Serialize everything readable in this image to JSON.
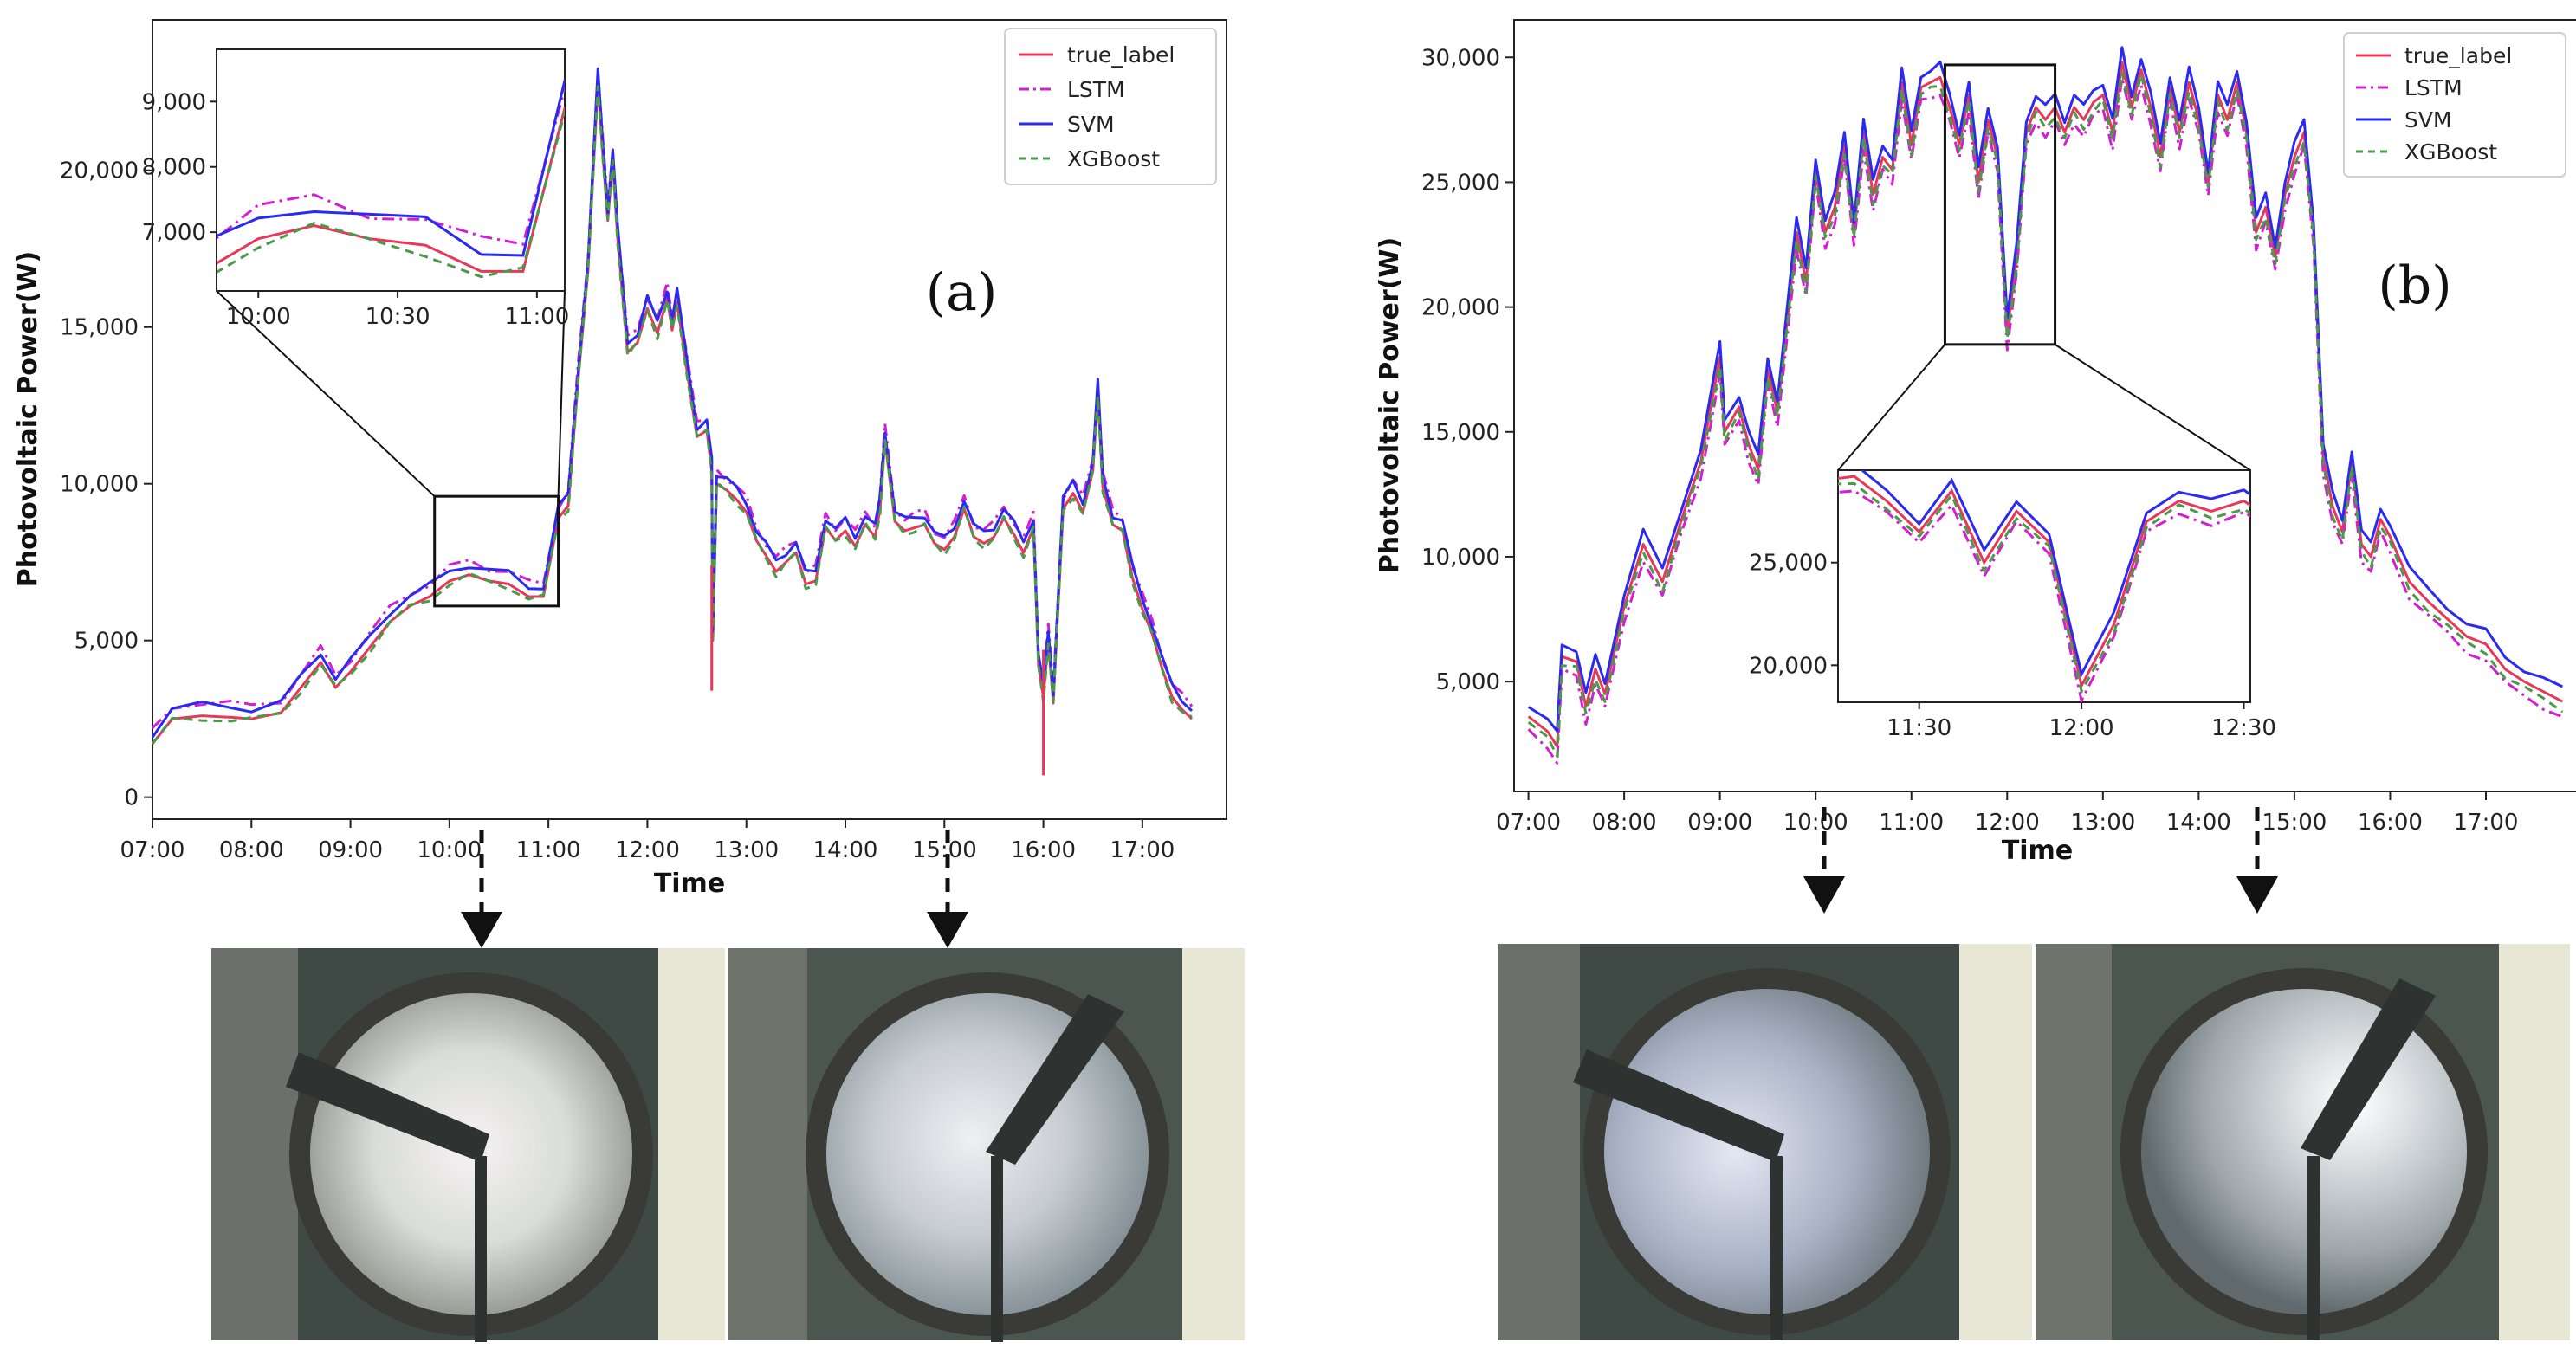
{
  "colors": {
    "true_label": "#e8385a",
    "LSTM": "#d21fd2",
    "SVM": "#2a2af0",
    "XGBoost": "#4a9a4a"
  },
  "chart_data": [
    {
      "id": "a",
      "type": "line",
      "panel_label": "(a)",
      "xlabel": "Time",
      "ylabel": "Photovoltaic Power(W)",
      "xlim": [
        7.0,
        17.85
      ],
      "ylim": [
        -700,
        24800
      ],
      "xticks": [
        "07:00",
        "08:00",
        "09:00",
        "10:00",
        "11:00",
        "12:00",
        "13:00",
        "14:00",
        "15:00",
        "16:00",
        "17:00"
      ],
      "yticks": [
        "0",
        "5,000",
        "10,000",
        "15,000",
        "20,000"
      ],
      "legend": [
        "true_label",
        "LSTM",
        "SVM",
        "XGBoost"
      ],
      "legend_position": "top-right",
      "series_base": {
        "x": [
          7.0,
          7.2,
          7.5,
          7.8,
          8.0,
          8.3,
          8.5,
          8.7,
          8.85,
          9.0,
          9.2,
          9.4,
          9.6,
          9.8,
          10.0,
          10.2,
          10.4,
          10.6,
          10.8,
          10.95,
          11.1,
          11.2,
          11.3,
          11.4,
          11.5,
          11.55,
          11.6,
          11.65,
          11.7,
          11.8,
          11.9,
          12.0,
          12.1,
          12.2,
          12.25,
          12.3,
          12.4,
          12.5,
          12.6,
          12.65,
          12.66,
          12.7,
          12.8,
          12.9,
          13.0,
          13.1,
          13.2,
          13.3,
          13.4,
          13.5,
          13.6,
          13.7,
          13.8,
          13.9,
          14.0,
          14.1,
          14.2,
          14.3,
          14.35,
          14.4,
          14.5,
          14.6,
          14.7,
          14.8,
          14.9,
          15.0,
          15.1,
          15.2,
          15.3,
          15.4,
          15.5,
          15.6,
          15.7,
          15.8,
          15.9,
          15.95,
          16.0,
          16.05,
          16.1,
          16.2,
          16.3,
          16.4,
          16.5,
          16.55,
          16.6,
          16.7,
          16.8,
          16.9,
          17.0,
          17.1,
          17.2,
          17.3,
          17.4,
          17.5
        ],
        "values": [
          1700,
          2500,
          2600,
          2550,
          2500,
          2700,
          3500,
          4300,
          3500,
          4000,
          4800,
          5600,
          6100,
          6400,
          6900,
          7100,
          6900,
          6800,
          6400,
          6400,
          8900,
          9300,
          13300,
          16800,
          22800,
          20500,
          18400,
          20300,
          17800,
          14200,
          14500,
          15600,
          14800,
          15900,
          14900,
          15800,
          13600,
          11500,
          11700,
          10400,
          5000,
          10000,
          9800,
          9500,
          9100,
          8200,
          7700,
          7200,
          7500,
          7800,
          6800,
          6900,
          8600,
          8200,
          8500,
          8000,
          8700,
          8300,
          9200,
          11400,
          8800,
          8500,
          8600,
          8700,
          8100,
          7900,
          8300,
          9200,
          8300,
          8100,
          8300,
          8900,
          8400,
          7800,
          8600,
          4200,
          3200,
          5000,
          3000,
          9200,
          9700,
          9100,
          10400,
          12900,
          9900,
          8700,
          8500,
          7000,
          6000,
          5200,
          4100,
          3200,
          2800,
          2500
        ]
      },
      "series": [
        {
          "name": "true_label",
          "style": "solid",
          "offset": 0
        },
        {
          "name": "LSTM",
          "style": "dashdot",
          "offset": 420
        },
        {
          "name": "SVM",
          "style": "solid",
          "offset": 330
        },
        {
          "name": "XGBoost",
          "style": "dashed",
          "offset": -60
        }
      ],
      "annotations": [
        {
          "x": 16.0,
          "y": 700,
          "series": "true_label"
        },
        {
          "x": 12.65,
          "y": 3400,
          "series": "true_label"
        }
      ],
      "zoom_box": {
        "x": [
          9.85,
          11.1
        ],
        "y": [
          6100,
          9600
        ]
      },
      "inset": {
        "xlim": [
          9.85,
          11.1
        ],
        "ylim": [
          6100,
          9800
        ],
        "xticks": [
          "10:00",
          "10:30",
          "11:00"
        ],
        "yticks": [
          "7,000",
          "8,000",
          "9,000"
        ],
        "tick_values_x": [
          10.0,
          10.5,
          11.0
        ],
        "tick_values_y": [
          7000,
          8000,
          9000
        ]
      },
      "photos": [
        "10:00 sky image",
        "15:00 sky image"
      ]
    },
    {
      "id": "b",
      "type": "line",
      "panel_label": "(b)",
      "xlabel": "Time",
      "ylabel": "Photovoltaic Power(W)",
      "xlim": [
        6.85,
        17.95
      ],
      "ylim": [
        600,
        31500
      ],
      "xticks": [
        "07:00",
        "08:00",
        "09:00",
        "10:00",
        "11:00",
        "12:00",
        "13:00",
        "14:00",
        "15:00",
        "16:00",
        "17:00"
      ],
      "yticks": [
        "5,000",
        "10,000",
        "15,000",
        "20,000",
        "25,000",
        "30,000"
      ],
      "legend": [
        "true_label",
        "LSTM",
        "SVM",
        "XGBoost"
      ],
      "legend_position": "top-right",
      "series_base": {
        "x": [
          7.0,
          7.2,
          7.3,
          7.35,
          7.5,
          7.6,
          7.7,
          7.8,
          8.0,
          8.2,
          8.4,
          8.6,
          8.8,
          9.0,
          9.05,
          9.2,
          9.3,
          9.4,
          9.5,
          9.6,
          9.8,
          9.9,
          10.0,
          10.1,
          10.2,
          10.3,
          10.4,
          10.5,
          10.6,
          10.7,
          10.8,
          10.9,
          11.0,
          11.1,
          11.2,
          11.3,
          11.4,
          11.5,
          11.6,
          11.7,
          11.8,
          11.9,
          12.0,
          12.1,
          12.2,
          12.3,
          12.4,
          12.5,
          12.6,
          12.7,
          12.8,
          12.9,
          13.0,
          13.1,
          13.2,
          13.3,
          13.4,
          13.5,
          13.6,
          13.7,
          13.8,
          13.9,
          14.0,
          14.1,
          14.2,
          14.3,
          14.4,
          14.5,
          14.6,
          14.7,
          14.8,
          14.9,
          15.0,
          15.1,
          15.2,
          15.3,
          15.4,
          15.5,
          15.6,
          15.7,
          15.8,
          15.9,
          16.0,
          16.2,
          16.4,
          16.6,
          16.8,
          17.0,
          17.2,
          17.4,
          17.6,
          17.8
        ],
        "values": [
          3600,
          3000,
          2400,
          6000,
          5800,
          4000,
          5500,
          4500,
          8000,
          10500,
          9000,
          11500,
          13800,
          18000,
          15000,
          16000,
          14500,
          13500,
          17500,
          15800,
          23000,
          21000,
          25500,
          23000,
          24000,
          26500,
          23000,
          27000,
          24500,
          26000,
          25500,
          29000,
          26500,
          28800,
          29000,
          29200,
          28000,
          26500,
          28500,
          25000,
          27500,
          26000,
          19000,
          22000,
          27000,
          28000,
          27500,
          28000,
          27000,
          28000,
          27500,
          28200,
          28500,
          27000,
          29800,
          28000,
          29500,
          28000,
          26000,
          28800,
          27000,
          29000,
          27500,
          25000,
          28500,
          27500,
          29000,
          27000,
          23000,
          24000,
          22000,
          24500,
          26000,
          27000,
          23000,
          14000,
          12000,
          11000,
          13800,
          10500,
          10000,
          11500,
          10800,
          9000,
          8200,
          7500,
          6800,
          6500,
          5500,
          5000,
          4600,
          4200
        ]
      },
      "series": [
        {
          "name": "true_label",
          "style": "solid",
          "offset": 0
        },
        {
          "name": "LSTM",
          "style": "dashdot",
          "offset": -600
        },
        {
          "name": "SVM",
          "style": "solid",
          "offset": 500
        },
        {
          "name": "XGBoost",
          "style": "dashed",
          "offset": -300
        }
      ],
      "zoom_box": {
        "x": [
          11.35,
          12.5
        ],
        "y": [
          18500,
          29700
        ]
      },
      "inset": {
        "xlim": [
          11.25,
          12.52
        ],
        "ylim": [
          18200,
          29500
        ],
        "xticks": [
          "11:30",
          "12:00",
          "12:30"
        ],
        "yticks": [
          "20,000",
          "25,000"
        ],
        "tick_values_x": [
          11.5,
          12.0,
          12.5
        ],
        "tick_values_y": [
          20000,
          25000
        ]
      },
      "photos": [
        "10:00 sky image",
        "15:00 sky image"
      ]
    }
  ]
}
